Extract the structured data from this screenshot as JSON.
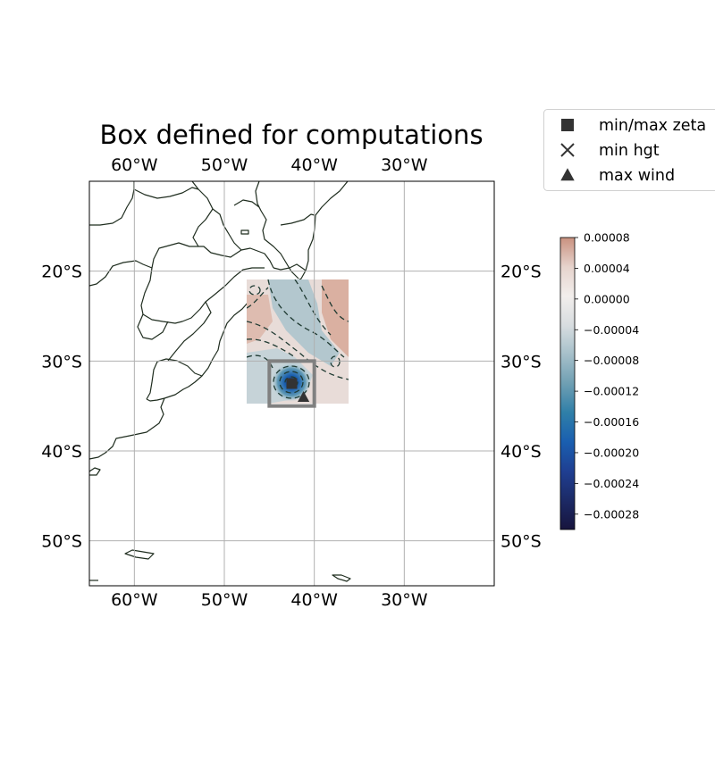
{
  "title": "Box defined for computations",
  "map": {
    "lon_range": [
      -65,
      -20
    ],
    "lat_range": [
      -55,
      -10
    ],
    "lon_ticks": [
      {
        "value": -60,
        "label": "60°W"
      },
      {
        "value": -50,
        "label": "50°W"
      },
      {
        "value": -40,
        "label": "40°W"
      },
      {
        "value": -30,
        "label": "30°W"
      }
    ],
    "lat_ticks": [
      {
        "value": -20,
        "label": "20°S"
      },
      {
        "value": -30,
        "label": "30°S"
      },
      {
        "value": -40,
        "label": "40°S"
      },
      {
        "value": -50,
        "label": "50°S"
      }
    ],
    "gridlines": true,
    "field_extent": {
      "lon": [
        -47.5,
        -36.25
      ],
      "lat": [
        -35,
        -21.25
      ]
    },
    "computation_box": {
      "lon": [
        -45,
        -40
      ],
      "lat": [
        -35,
        -30
      ],
      "color": "#808080"
    },
    "markers": [
      {
        "name": "min/max zeta",
        "lon": -42.5,
        "lat": -32.5,
        "symbol": "square"
      },
      {
        "name": "max wind",
        "lon": -41.2,
        "lat": -34.0,
        "symbol": "triangle"
      }
    ]
  },
  "legend": {
    "placement": "top-right",
    "entries": [
      {
        "label": "min/max zeta",
        "symbol": "square"
      },
      {
        "label": "min hgt",
        "symbol": "x"
      },
      {
        "label": "max wind",
        "symbol": "triangle"
      }
    ]
  },
  "colorbar": {
    "range": [
      -0.0003,
      8e-05
    ],
    "ticks": [
      {
        "value": 8e-05,
        "label": "0.00008"
      },
      {
        "value": 4e-05,
        "label": "0.00004"
      },
      {
        "value": 0.0,
        "label": "0.00000"
      },
      {
        "value": -4e-05,
        "label": "−0.00004"
      },
      {
        "value": -8e-05,
        "label": "−0.00008"
      },
      {
        "value": -0.00012,
        "label": "−0.00012"
      },
      {
        "value": -0.00016,
        "label": "−0.00016"
      },
      {
        "value": -0.0002,
        "label": "−0.00020"
      },
      {
        "value": -0.00024,
        "label": "−0.00024"
      },
      {
        "value": -0.00028,
        "label": "−0.00028"
      }
    ],
    "colors": [
      "#c9917f",
      "#e6d3cc",
      "#f2eeec",
      "#d8dde0",
      "#a6c0ca",
      "#6f9fb3",
      "#2f7fa8",
      "#1a5fb0",
      "#1f3f92",
      "#1c2a66",
      "#17143d"
    ]
  },
  "colors": {
    "coastline": "#1f2d1f",
    "contour": "#1f3a32",
    "grid": "#b0b0b0"
  }
}
